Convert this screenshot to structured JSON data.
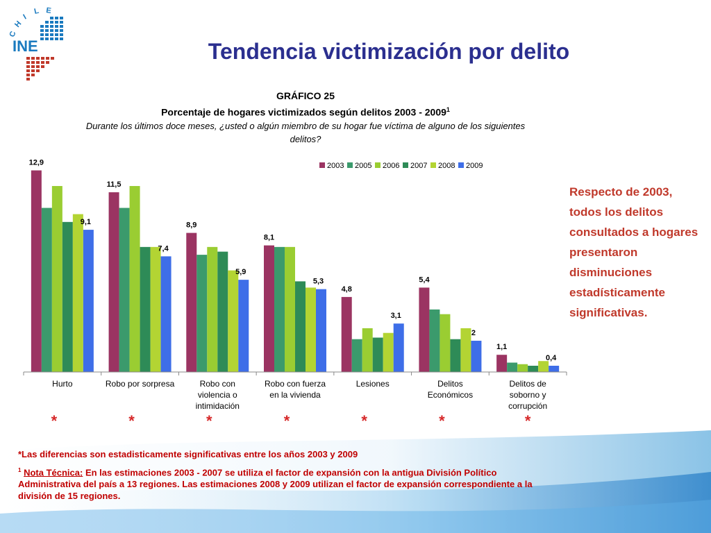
{
  "header": {
    "title": "Tendencia victimización por delito",
    "logo": {
      "arc_text": "CHILE",
      "word": "INE",
      "colors": [
        "#1a7abf",
        "#c0392b"
      ]
    }
  },
  "chart_heading": {
    "number": "GRÁFICO 25",
    "subtitle": "Porcentaje de hogares victimizados según delitos 2003 - 2009",
    "subtitle_sup": "1",
    "question": "Durante los últimos doce meses, ¿usted o algún miembro de su hogar fue víctima de alguno de los siguientes delitos?"
  },
  "chart_data": {
    "type": "bar",
    "categories": [
      [
        "Hurto"
      ],
      [
        "Robo por sorpresa"
      ],
      [
        "Robo con",
        "violencia o",
        "intimidación"
      ],
      [
        "Robo con fuerza",
        "en la vivienda"
      ],
      [
        "Lesiones"
      ],
      [
        "Delitos",
        "Económicos"
      ],
      [
        "Delitos de",
        "soborno y",
        "corrupción"
      ]
    ],
    "series": [
      {
        "name": "2003",
        "color": "#9b3462",
        "values": [
          12.9,
          11.5,
          8.9,
          8.1,
          4.8,
          5.4,
          1.1
        ]
      },
      {
        "name": "2005",
        "color": "#3b9a6c",
        "values": [
          10.5,
          10.5,
          7.5,
          8.0,
          2.1,
          4.0,
          0.6
        ]
      },
      {
        "name": "2006",
        "color": "#9acd32",
        "values": [
          11.9,
          11.9,
          8.0,
          8.0,
          2.8,
          3.7,
          0.5
        ]
      },
      {
        "name": "2007",
        "color": "#2e8b57",
        "values": [
          9.6,
          8.0,
          7.7,
          5.8,
          2.2,
          2.1,
          0.4
        ]
      },
      {
        "name": "2008",
        "color": "#b3d433",
        "values": [
          10.1,
          8.0,
          6.5,
          5.4,
          2.5,
          2.8,
          0.7
        ]
      },
      {
        "name": "2009",
        "color": "#3e6ee8",
        "values": [
          9.1,
          7.4,
          5.9,
          5.3,
          3.1,
          2.0,
          0.4
        ]
      }
    ],
    "labeled_series": [
      "2003",
      "2009"
    ],
    "data_labels_first": [
      "12,9",
      "11,5",
      "8,9",
      "8,1",
      "4,8",
      "5,4",
      "1,1"
    ],
    "data_labels_last": [
      "9,1",
      "7,4",
      "5,9",
      "5,3",
      "3,1",
      "2",
      "0,4"
    ],
    "significance_marks": [
      "*",
      "*",
      "*",
      "*",
      "*",
      "*",
      "*"
    ],
    "ylim": [
      0,
      13.5
    ],
    "legend_position": "top-right",
    "grid": false,
    "significance_color": "#d62728"
  },
  "side_note": "Respecto de 2003, todos los delitos consultados a hogares presentaron disminuciones estadísticamente significativas.",
  "footnotes": {
    "significance": "*Las diferencias son estadisticamente significativas entre los años 2003 y 2009",
    "technical_sup": "1",
    "technical_label": "Nota Técnica:",
    "technical_text": "En las estimaciones 2003 - 2007 se utiliza el factor de expansión con la antigua División Político Administrativa del país a 13 regiones. Las estimaciones 2008 y 2009 utilizan el factor de expansión correspondiente a la división de 15 regiones."
  }
}
